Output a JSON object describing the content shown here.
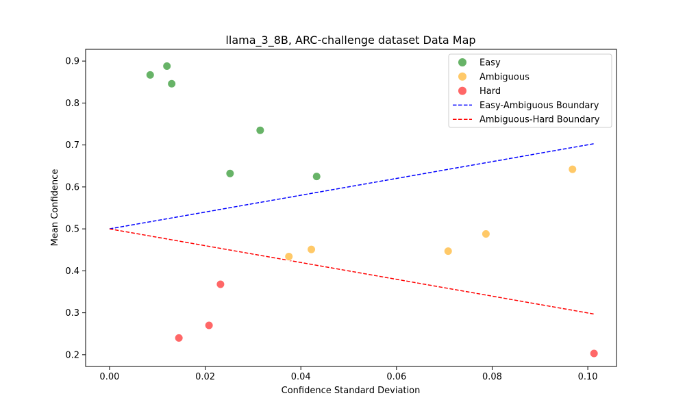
{
  "chart_data": {
    "type": "scatter",
    "title": "llama_3_8B, ARC-challenge dataset Data Map",
    "xlabel": "Confidence Standard Deviation",
    "ylabel": "Mean Confidence",
    "xlim": [
      -0.005,
      0.106
    ],
    "ylim": [
      0.172,
      0.928
    ],
    "xticks": [
      0.0,
      0.02,
      0.04,
      0.06,
      0.08,
      0.1
    ],
    "xtick_labels": [
      "0.00",
      "0.02",
      "0.04",
      "0.06",
      "0.08",
      "0.10"
    ],
    "yticks": [
      0.2,
      0.3,
      0.4,
      0.5,
      0.6,
      0.7,
      0.8,
      0.9
    ],
    "ytick_labels": [
      "0.2",
      "0.3",
      "0.4",
      "0.5",
      "0.6",
      "0.7",
      "0.8",
      "0.9"
    ],
    "grid": false,
    "legend_position": "top-right",
    "series": [
      {
        "name": "Easy",
        "kind": "scatter",
        "color": "#4ca64c",
        "points": [
          {
            "x": 0.0085,
            "y": 0.867
          },
          {
            "x": 0.012,
            "y": 0.888
          },
          {
            "x": 0.013,
            "y": 0.846
          },
          {
            "x": 0.0252,
            "y": 0.632
          },
          {
            "x": 0.0315,
            "y": 0.735
          },
          {
            "x": 0.0433,
            "y": 0.625
          }
        ]
      },
      {
        "name": "Ambiguous",
        "kind": "scatter",
        "color": "#ffc04d",
        "points": [
          {
            "x": 0.0375,
            "y": 0.434
          },
          {
            "x": 0.0422,
            "y": 0.451
          },
          {
            "x": 0.0708,
            "y": 0.447
          },
          {
            "x": 0.0787,
            "y": 0.488
          },
          {
            "x": 0.0968,
            "y": 0.642
          }
        ]
      },
      {
        "name": "Hard",
        "kind": "scatter",
        "color": "#ff4c4c",
        "points": [
          {
            "x": 0.0145,
            "y": 0.24
          },
          {
            "x": 0.0208,
            "y": 0.27
          },
          {
            "x": 0.0232,
            "y": 0.368
          },
          {
            "x": 0.1013,
            "y": 0.203
          }
        ]
      },
      {
        "name": "Easy-Ambiguous Boundary",
        "kind": "line",
        "style": "dashed",
        "color": "#0000ff",
        "points": [
          {
            "x": 0.0,
            "y": 0.5
          },
          {
            "x": 0.1013,
            "y": 0.703
          }
        ]
      },
      {
        "name": "Ambiguous-Hard Boundary",
        "kind": "line",
        "style": "dashed",
        "color": "#ff0000",
        "points": [
          {
            "x": 0.0,
            "y": 0.5
          },
          {
            "x": 0.1013,
            "y": 0.297
          }
        ]
      }
    ]
  }
}
